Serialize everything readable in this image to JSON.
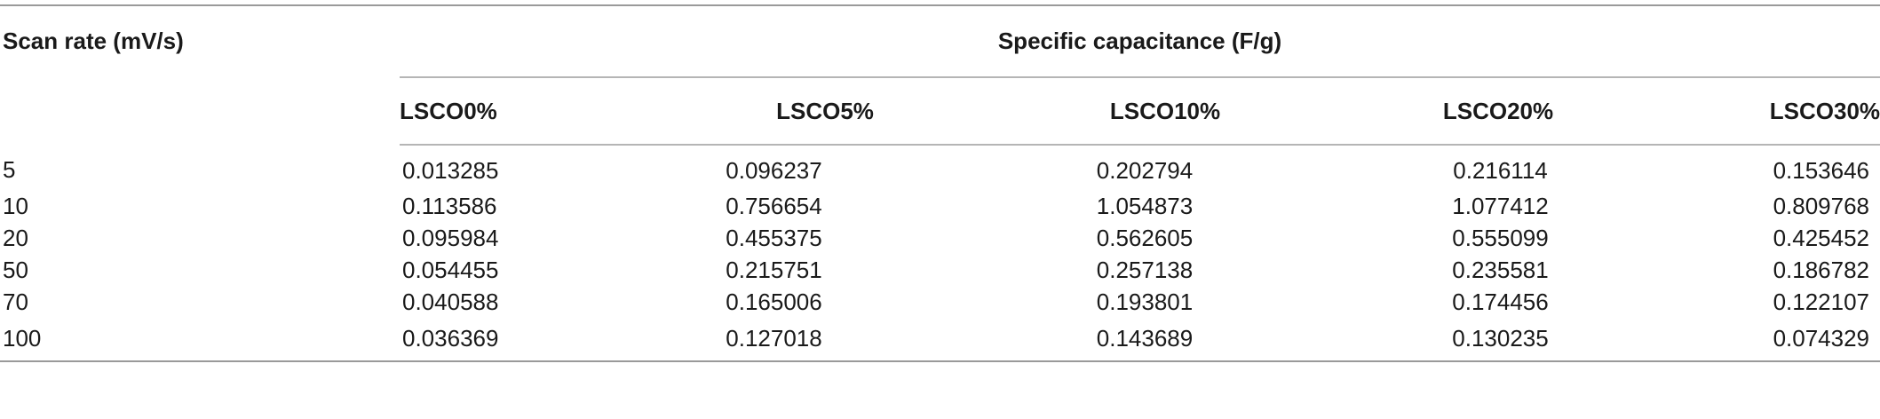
{
  "table": {
    "row_header": "Scan rate (mV/s)",
    "group_header": "Specific capacitance (F/g)",
    "columns": [
      "LSCO0%",
      "LSCO5%",
      "LSCO10%",
      "LSCO20%",
      "LSCO30%"
    ],
    "rows": [
      {
        "rate": "5",
        "values": [
          "0.013285",
          "0.096237",
          "0.202794",
          "0.216114",
          "0.153646"
        ]
      },
      {
        "rate": "10",
        "values": [
          "0.113586",
          "0.756654",
          "1.054873",
          "1.077412",
          "0.809768"
        ]
      },
      {
        "rate": "20",
        "values": [
          "0.095984",
          "0.455375",
          "0.562605",
          "0.555099",
          "0.425452"
        ]
      },
      {
        "rate": "50",
        "values": [
          "0.054455",
          "0.215751",
          "0.257138",
          "0.235581",
          "0.186782"
        ]
      },
      {
        "rate": "70",
        "values": [
          "0.040588",
          "0.165006",
          "0.193801",
          "0.174456",
          "0.122107"
        ]
      },
      {
        "rate": "100",
        "values": [
          "0.036369",
          "0.127018",
          "0.143689",
          "0.130235",
          "0.074329"
        ]
      }
    ]
  }
}
